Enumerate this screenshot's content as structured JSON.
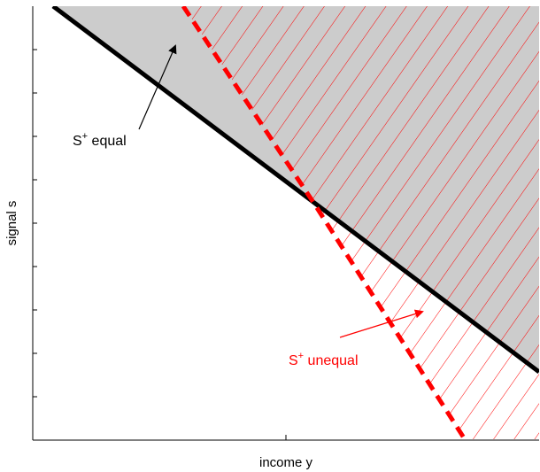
{
  "x_axis_label": "income y",
  "y_axis_label": "signal s",
  "regions": {
    "equal": {
      "prefix": "S",
      "superscript": "+",
      "suffix": " equal",
      "line_color": "#000000",
      "fill_color": "#cccccc",
      "line_style": "solid"
    },
    "unequal": {
      "prefix": "S",
      "superscript": "+",
      "suffix": " unequal",
      "line_color": "#ff0000",
      "hatch_color": "#ff0000",
      "line_style": "dashed"
    }
  }
}
